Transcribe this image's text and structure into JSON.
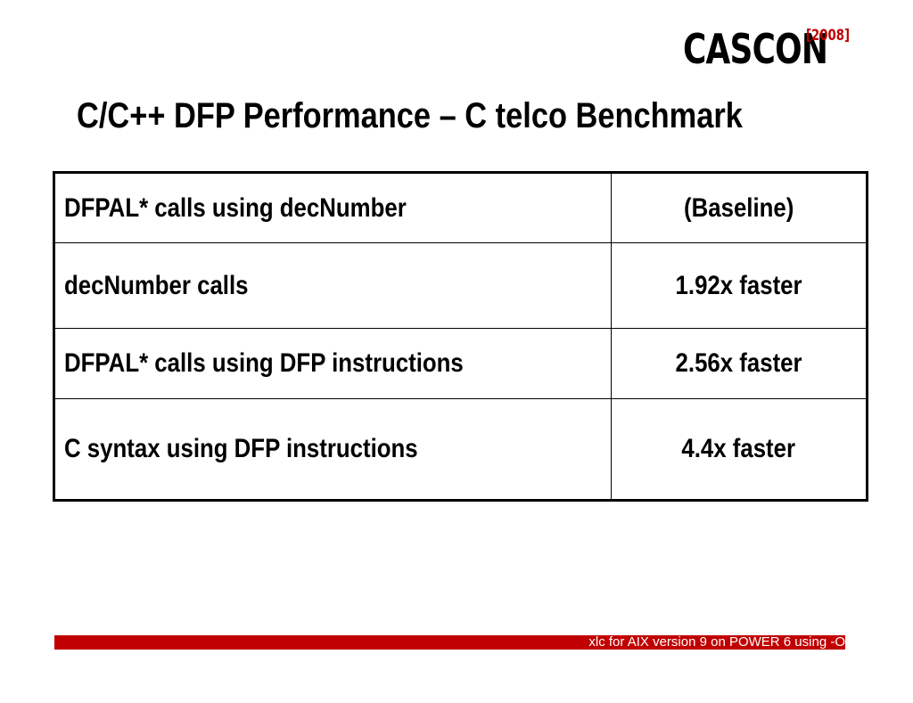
{
  "logo": {
    "text": "CASCON",
    "year": "[2008]",
    "year_color": "#c00000"
  },
  "title": "C/C++ DFP Performance – C telco Benchmark",
  "table": {
    "rows": [
      {
        "label": "DFPAL* calls using decNumber",
        "value": "(Baseline)"
      },
      {
        "label": "decNumber calls",
        "value": "1.92x faster"
      },
      {
        "label": "DFPAL* calls using DFP instructions",
        "value": "2.56x faster"
      },
      {
        "label": "C syntax using DFP instructions",
        "value": "4.4x faster"
      }
    ]
  },
  "footer": {
    "text": "xlc for AIX version 9 on POWER 6 using -O",
    "bar_color": "#c00000"
  }
}
